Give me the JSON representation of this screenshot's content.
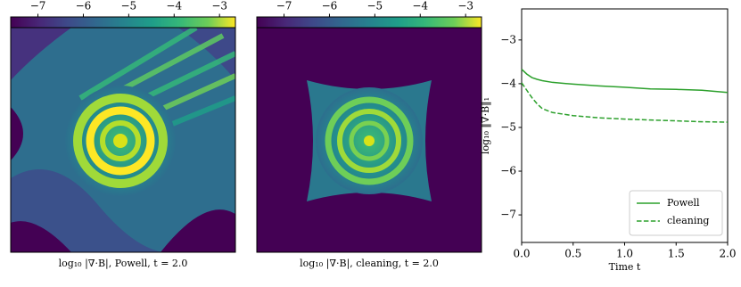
{
  "chart_data": [
    {
      "type": "heatmap",
      "caption": "log₁₀ |∇·B|, Powell, t = 2.0",
      "colormap": "viridis",
      "clim": [
        -7.6,
        -2.65
      ],
      "cticks": [
        {
          "value": -7,
          "label": "−7"
        },
        {
          "value": -6,
          "label": "−6"
        },
        {
          "value": -5,
          "label": "−5"
        },
        {
          "value": -4,
          "label": "−4"
        },
        {
          "value": -3,
          "label": "−3"
        }
      ]
    },
    {
      "type": "heatmap",
      "caption": "log₁₀ |∇·B|, cleaning, t = 2.0",
      "colormap": "viridis",
      "clim": [
        -7.6,
        -2.65
      ],
      "cticks": [
        {
          "value": -7,
          "label": "−7"
        },
        {
          "value": -6,
          "label": "−6"
        },
        {
          "value": -5,
          "label": "−5"
        },
        {
          "value": -4,
          "label": "−4"
        },
        {
          "value": -3,
          "label": "−3"
        }
      ]
    },
    {
      "type": "line",
      "xlabel": "Time t",
      "ylabel": "log₁₀ ‖∇·B‖₁",
      "x": [
        0,
        0.05,
        0.1,
        0.15,
        0.2,
        0.3,
        0.5,
        0.75,
        1.0,
        1.25,
        1.5,
        1.75,
        2.0
      ],
      "series": [
        {
          "name": "Powell",
          "color": "#2ca02c",
          "linestyle": "solid",
          "values": [
            -3.67,
            -3.78,
            -3.86,
            -3.9,
            -3.93,
            -3.97,
            -4.01,
            -4.05,
            -4.08,
            -4.12,
            -4.13,
            -4.15,
            -4.2
          ]
        },
        {
          "name": "cleaning",
          "color": "#2ca02c",
          "linestyle": "dashed",
          "values": [
            -3.98,
            -4.15,
            -4.32,
            -4.46,
            -4.57,
            -4.66,
            -4.73,
            -4.78,
            -4.81,
            -4.83,
            -4.85,
            -4.87,
            -4.88
          ]
        }
      ],
      "xlim": [
        0,
        2
      ],
      "ylim": [
        -7.63,
        -2.29
      ],
      "xticks": [
        {
          "value": 0,
          "label": "0.0"
        },
        0.5,
        {
          "value": 1,
          "label": "1.0"
        },
        1.5,
        {
          "value": 2,
          "label": "2.0"
        }
      ],
      "yticks": [
        {
          "value": -3,
          "label": "−3"
        },
        {
          "value": -4,
          "label": "−4"
        },
        {
          "value": -5,
          "label": "−5"
        },
        {
          "value": -6,
          "label": "−6"
        },
        {
          "value": -7,
          "label": "−7"
        }
      ],
      "legend": "lower right"
    }
  ]
}
